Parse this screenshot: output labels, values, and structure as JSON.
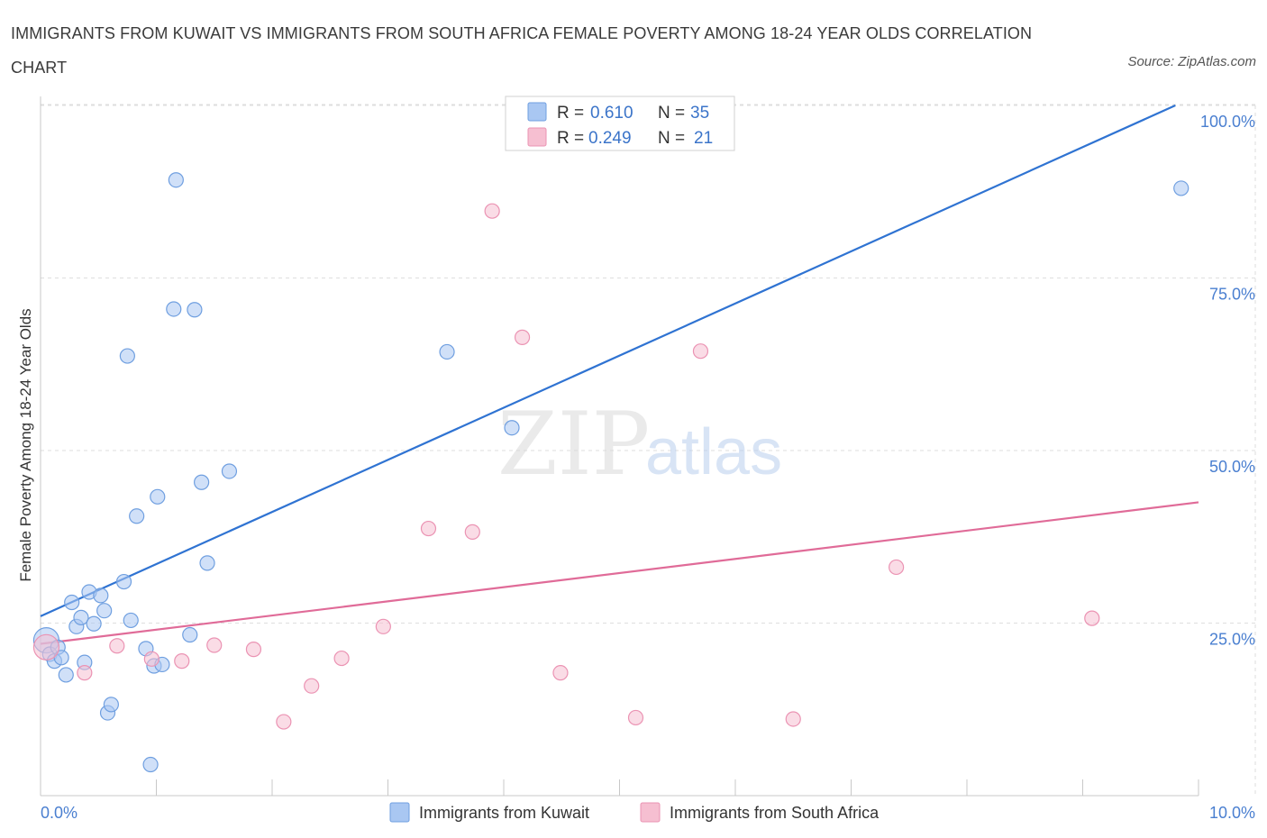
{
  "title": "IMMIGRANTS FROM KUWAIT VS IMMIGRANTS FROM SOUTH AFRICA FEMALE POVERTY AMONG 18-24 YEAR OLDS CORRELATION CHART",
  "source": "Source: ZipAtlas.com",
  "watermark": {
    "zip": "ZIP",
    "atlas": "atlas"
  },
  "colors": {
    "kuwait_fill": "#a9c7f2",
    "kuwait_stroke": "#6f9fe0",
    "kuwait_line": "#2f73d2",
    "sa_fill": "#f6bfd1",
    "sa_stroke": "#eb93b3",
    "sa_line": "#e06b98",
    "grid": "#dedede",
    "tick_text": "#4a7fd0"
  },
  "legend": {
    "rows": [
      {
        "r_label": "R =",
        "r_value": "0.610",
        "n_label": "N =",
        "n_value": "35"
      },
      {
        "r_label": "R =",
        "r_value": "0.249",
        "n_label": "N =",
        "n_value": "21"
      }
    ]
  },
  "chart_data": {
    "type": "scatter",
    "title": "IMMIGRANTS FROM KUWAIT VS IMMIGRANTS FROM SOUTH AFRICA FEMALE POVERTY AMONG 18-24 YEAR OLDS CORRELATION CHART",
    "xlabel": "",
    "ylabel": "Female Poverty Among 18-24 Year Olds",
    "xlim": [
      0,
      10
    ],
    "ylim": [
      0,
      100
    ],
    "x_tick_labels": [
      "0.0%",
      "10.0%"
    ],
    "y_ticks": [
      25,
      50,
      75,
      100
    ],
    "y_tick_labels": [
      "25.0%",
      "50.0%",
      "75.0%",
      "100.0%"
    ],
    "grid": true,
    "legend_placement": "top-center",
    "series": [
      {
        "name": "Immigrants from Kuwait",
        "R": 0.61,
        "N": 35,
        "trend": {
          "x": [
            0,
            9.8
          ],
          "y": [
            26,
            100
          ]
        },
        "points": [
          {
            "x": 0.05,
            "y": 22.5,
            "big": true
          },
          {
            "x": 0.08,
            "y": 20.5
          },
          {
            "x": 0.12,
            "y": 19.5
          },
          {
            "x": 0.15,
            "y": 21.5
          },
          {
            "x": 0.18,
            "y": 20
          },
          {
            "x": 0.22,
            "y": 17.5
          },
          {
            "x": 0.27,
            "y": 28
          },
          {
            "x": 0.31,
            "y": 24.5
          },
          {
            "x": 0.35,
            "y": 25.8
          },
          {
            "x": 0.38,
            "y": 19.3
          },
          {
            "x": 0.42,
            "y": 29.5
          },
          {
            "x": 0.46,
            "y": 24.9
          },
          {
            "x": 0.52,
            "y": 29
          },
          {
            "x": 0.55,
            "y": 26.8
          },
          {
            "x": 0.58,
            "y": 12
          },
          {
            "x": 0.61,
            "y": 13.2
          },
          {
            "x": 0.72,
            "y": 31
          },
          {
            "x": 0.75,
            "y": 63.7
          },
          {
            "x": 0.78,
            "y": 25.4
          },
          {
            "x": 0.83,
            "y": 40.5
          },
          {
            "x": 0.91,
            "y": 21.3
          },
          {
            "x": 0.95,
            "y": 4.5
          },
          {
            "x": 0.98,
            "y": 18.8
          },
          {
            "x": 1.01,
            "y": 43.3
          },
          {
            "x": 1.05,
            "y": 19
          },
          {
            "x": 1.15,
            "y": 70.5
          },
          {
            "x": 1.17,
            "y": 89.2
          },
          {
            "x": 1.29,
            "y": 23.3
          },
          {
            "x": 1.33,
            "y": 70.4
          },
          {
            "x": 1.39,
            "y": 45.4
          },
          {
            "x": 1.44,
            "y": 33.7
          },
          {
            "x": 1.63,
            "y": 47
          },
          {
            "x": 3.51,
            "y": 64.3
          },
          {
            "x": 4.07,
            "y": 53.3
          },
          {
            "x": 9.85,
            "y": 88
          }
        ]
      },
      {
        "name": "Immigrants from South Africa",
        "R": 0.249,
        "N": 21,
        "trend": {
          "x": [
            0,
            10
          ],
          "y": [
            22,
            42.5
          ]
        },
        "points": [
          {
            "x": 0.05,
            "y": 21.5,
            "big": true
          },
          {
            "x": 0.38,
            "y": 17.8
          },
          {
            "x": 0.66,
            "y": 21.7
          },
          {
            "x": 0.96,
            "y": 19.8
          },
          {
            "x": 1.22,
            "y": 19.5
          },
          {
            "x": 1.5,
            "y": 21.8
          },
          {
            "x": 1.84,
            "y": 21.2
          },
          {
            "x": 2.1,
            "y": 10.7
          },
          {
            "x": 2.34,
            "y": 15.9
          },
          {
            "x": 2.6,
            "y": 19.9
          },
          {
            "x": 2.96,
            "y": 24.5
          },
          {
            "x": 3.35,
            "y": 38.7
          },
          {
            "x": 3.73,
            "y": 38.2
          },
          {
            "x": 3.9,
            "y": 84.7
          },
          {
            "x": 4.16,
            "y": 66.4
          },
          {
            "x": 4.49,
            "y": 17.8
          },
          {
            "x": 5.14,
            "y": 11.3
          },
          {
            "x": 5.7,
            "y": 64.4
          },
          {
            "x": 6.5,
            "y": 11.1
          },
          {
            "x": 7.39,
            "y": 33.1
          },
          {
            "x": 9.08,
            "y": 25.7
          }
        ]
      }
    ]
  }
}
